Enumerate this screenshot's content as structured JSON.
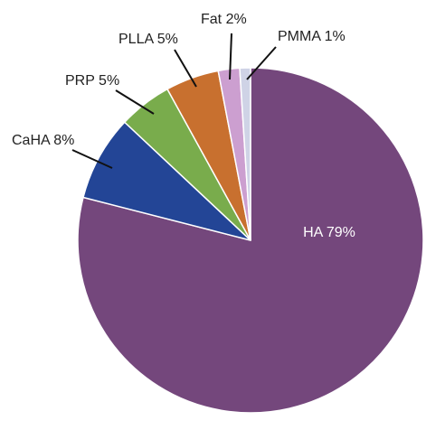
{
  "chart_data": {
    "type": "pie",
    "title": "",
    "legend": "none",
    "slices": [
      {
        "label": "HA 79%",
        "value": 79,
        "color": "#74477c"
      },
      {
        "label": "CaHA 8%",
        "value": 8,
        "color": "#234596"
      },
      {
        "label": "PRP 5%",
        "value": 5,
        "color": "#79ac4c"
      },
      {
        "label": "PLLA 5%",
        "value": 5,
        "color": "#c8702f"
      },
      {
        "label": "Fat 2%",
        "value": 2,
        "color": "#cc9fd0"
      },
      {
        "label": "PMMA 1%",
        "value": 1,
        "color": "#cfd3e6"
      }
    ]
  }
}
